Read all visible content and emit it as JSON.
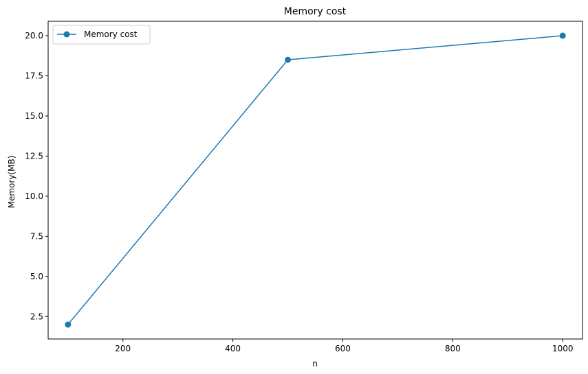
{
  "chart_data": {
    "type": "line",
    "title": "Memory cost",
    "xlabel": "n",
    "ylabel": "Memory(MB)",
    "xlim": [
      64,
      1036
    ],
    "ylim": [
      1.1,
      20.9
    ],
    "xticks": [
      200,
      400,
      600,
      800,
      1000
    ],
    "xtick_labels": [
      "200",
      "400",
      "600",
      "800",
      "1000"
    ],
    "yticks": [
      2.5,
      5.0,
      7.5,
      10.0,
      12.5,
      15.0,
      17.5,
      20.0
    ],
    "ytick_labels": [
      "2.5",
      "5.0",
      "7.5",
      "10.0",
      "12.5",
      "15.0",
      "17.5",
      "20.0"
    ],
    "grid": false,
    "legend_position": "top-left",
    "series": [
      {
        "name": "Memory cost",
        "color": "#1f77b4",
        "marker": "circle",
        "x": [
          100,
          500,
          1000
        ],
        "y": [
          2.0,
          18.5,
          20.0
        ]
      }
    ]
  }
}
